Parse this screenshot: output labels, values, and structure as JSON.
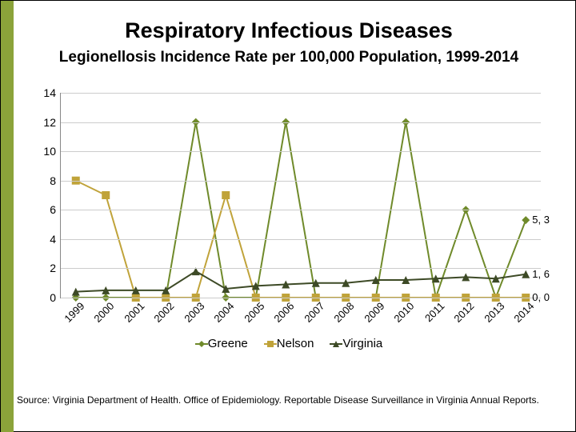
{
  "title": "Respiratory Infectious Diseases",
  "subtitle": "Legionellosis Incidence Rate per 100,000 Population, 1999-2014",
  "accent_color": "#8ba33a",
  "source": "Source: Virginia Department of Health. Office of Epidemiology. Reportable Disease Surveillance in Virginia Annual Reports.",
  "chart": {
    "type": "line",
    "categories": [
      "1999",
      "2000",
      "2001",
      "2002",
      "2003",
      "2004",
      "2005",
      "2006",
      "2007",
      "2008",
      "2009",
      "2010",
      "2011",
      "2012",
      "2013",
      "2014"
    ],
    "ymin": 0,
    "ymax": 14,
    "ytick_step": 2,
    "background_color": "#ffffff",
    "grid_color": "#cccccc",
    "axis_color": "#888888",
    "label_fontsize": 14,
    "xtick_rotation": -45,
    "line_width": 2,
    "marker_size": 5,
    "series": [
      {
        "name": "Greene",
        "color": "#6f8a2a",
        "marker": "diamond",
        "values": [
          0,
          0,
          0,
          0,
          12,
          0,
          0,
          12,
          0,
          0,
          0,
          12,
          0,
          6,
          0,
          5.3
        ],
        "end_label": "5, 3"
      },
      {
        "name": "Nelson",
        "color": "#c0a33a",
        "marker": "square",
        "values": [
          8,
          7,
          0,
          0,
          0,
          7,
          0,
          0,
          0,
          0,
          0,
          0,
          0,
          0,
          0,
          0
        ],
        "end_label": "0, 0"
      },
      {
        "name": "Virginia",
        "color": "#3d4a26",
        "marker": "triangle",
        "values": [
          0.4,
          0.5,
          0.5,
          0.5,
          1.8,
          0.6,
          0.8,
          0.9,
          1.0,
          1.0,
          1.2,
          1.2,
          1.3,
          1.4,
          1.3,
          1.6
        ],
        "end_label": "1, 6"
      }
    ],
    "legend_items": [
      "Greene",
      "Nelson",
      "Virginia"
    ]
  }
}
